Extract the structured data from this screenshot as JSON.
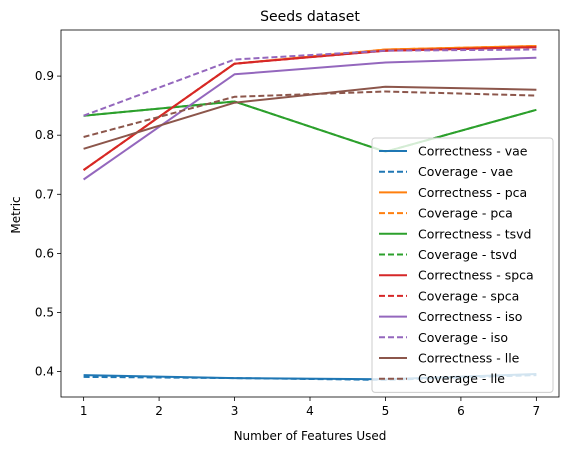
{
  "chart_data": {
    "type": "line",
    "title": "Seeds dataset",
    "xlabel": "Number of Features Used",
    "ylabel": "Metric",
    "xlim": [
      0.7,
      7.3
    ],
    "ylim": [
      0.357,
      0.978
    ],
    "xticks": [
      1,
      2,
      3,
      4,
      5,
      6,
      7
    ],
    "yticks": [
      0.4,
      0.5,
      0.6,
      0.7,
      0.8,
      0.9
    ],
    "ytick_labels": [
      "0.4",
      "0.5",
      "0.6",
      "0.7",
      "0.8",
      "0.9"
    ],
    "grid": false,
    "legend_position": "lower-right",
    "x": [
      1,
      3,
      5,
      7
    ],
    "series": [
      {
        "name": "Correctness - vae",
        "color": "#1f77b4",
        "dash": "solid",
        "values": [
          0.394,
          0.389,
          0.387,
          0.396
        ]
      },
      {
        "name": "Coverage - vae",
        "color": "#1f77b4",
        "dash": "dashed",
        "values": [
          0.391,
          0.389,
          0.386,
          0.394
        ]
      },
      {
        "name": "Correctness - pca",
        "color": "#ff7f0e",
        "dash": "solid",
        "values": [
          0.741,
          0.921,
          0.945,
          0.951
        ]
      },
      {
        "name": "Coverage - pca",
        "color": "#ff7f0e",
        "dash": "dashed",
        "values": [
          0.741,
          0.921,
          0.945,
          0.951
        ]
      },
      {
        "name": "Correctness - tsvd",
        "color": "#2ca02c",
        "dash": "solid",
        "values": [
          0.833,
          0.857,
          0.772,
          0.843
        ]
      },
      {
        "name": "Coverage - tsvd",
        "color": "#2ca02c",
        "dash": "dashed",
        "values": [
          0.833,
          0.857,
          0.772,
          0.843
        ]
      },
      {
        "name": "Correctness - spca",
        "color": "#d62728",
        "dash": "solid",
        "values": [
          0.741,
          0.921,
          0.943,
          0.949
        ]
      },
      {
        "name": "Coverage - spca",
        "color": "#d62728",
        "dash": "dashed",
        "values": [
          0.741,
          0.921,
          0.943,
          0.949
        ]
      },
      {
        "name": "Correctness - iso",
        "color": "#9467bd",
        "dash": "solid",
        "values": [
          0.725,
          0.903,
          0.923,
          0.931
        ]
      },
      {
        "name": "Coverage - iso",
        "color": "#9467bd",
        "dash": "dashed",
        "values": [
          0.833,
          0.928,
          0.943,
          0.945
        ]
      },
      {
        "name": "Correctness - lle",
        "color": "#8c564b",
        "dash": "solid",
        "values": [
          0.777,
          0.855,
          0.882,
          0.877
        ]
      },
      {
        "name": "Coverage - lle",
        "color": "#8c564b",
        "dash": "dashed",
        "values": [
          0.797,
          0.865,
          0.874,
          0.867
        ]
      }
    ]
  }
}
